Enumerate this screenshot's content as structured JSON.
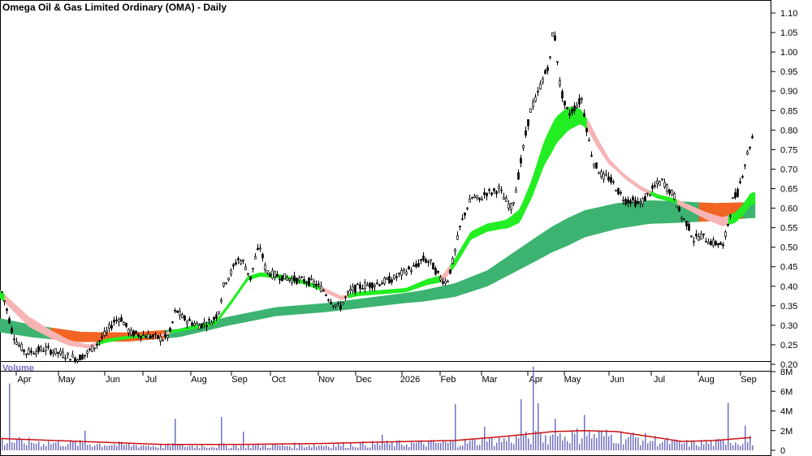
{
  "title": "Omega Oil & Gas Limited Ordinary (OMA) - Daily",
  "volume_label": "Volume",
  "colors": {
    "candle": "#000000",
    "ema_short_up": "#22ee22",
    "ema_short_down": "#f7b4b4",
    "ema_long_up": "#3cb371",
    "ema_long_down": "#f26522",
    "volume_bar": "#7070c0",
    "volume_avg": "#cc1111",
    "volume_label": "#7070c0"
  },
  "chart_data": [
    {
      "type": "candlestick",
      "title": "Omega Oil & Gas Limited Ordinary (OMA) - Daily",
      "y_ticks": [
        "1.10",
        "1.05",
        "1.00",
        "0.95",
        "0.90",
        "0.85",
        "0.80",
        "0.75",
        "0.70",
        "0.65",
        "0.60",
        "0.55",
        "0.50",
        "0.45",
        "0.40",
        "0.35",
        "0.30",
        "0.25",
        "0.20"
      ],
      "ylim": [
        0.185,
        1.11
      ],
      "x_labels": [
        "Apr",
        "May",
        "Jun",
        "Jul",
        "Aug",
        "Sep",
        "Oct",
        "Nov",
        "Dec",
        "2026",
        "Feb",
        "Mar",
        "Apr",
        "May",
        "Jun",
        "Jul",
        "Aug",
        "Sep"
      ],
      "price_path": [
        [
          0,
          0.4
        ],
        [
          8,
          0.34
        ],
        [
          15,
          0.28
        ],
        [
          22,
          0.25
        ],
        [
          32,
          0.23
        ],
        [
          45,
          0.235
        ],
        [
          55,
          0.24
        ],
        [
          70,
          0.23
        ],
        [
          85,
          0.22
        ],
        [
          95,
          0.215
        ],
        [
          105,
          0.225
        ],
        [
          118,
          0.25
        ],
        [
          130,
          0.28
        ],
        [
          140,
          0.31
        ],
        [
          148,
          0.32
        ],
        [
          160,
          0.28
        ],
        [
          175,
          0.275
        ],
        [
          190,
          0.27
        ],
        [
          200,
          0.265
        ],
        [
          208,
          0.275
        ],
        [
          216,
          0.34
        ],
        [
          224,
          0.32
        ],
        [
          232,
          0.31
        ],
        [
          245,
          0.3
        ],
        [
          260,
          0.31
        ],
        [
          268,
          0.33
        ],
        [
          276,
          0.41
        ],
        [
          283,
          0.43
        ],
        [
          292,
          0.47
        ],
        [
          300,
          0.46
        ],
        [
          308,
          0.42
        ],
        [
          315,
          0.48
        ],
        [
          320,
          0.5
        ],
        [
          327,
          0.44
        ],
        [
          335,
          0.43
        ],
        [
          345,
          0.425
        ],
        [
          355,
          0.42
        ],
        [
          370,
          0.415
        ],
        [
          385,
          0.41
        ],
        [
          398,
          0.39
        ],
        [
          408,
          0.36
        ],
        [
          418,
          0.345
        ],
        [
          425,
          0.37
        ],
        [
          432,
          0.39
        ],
        [
          445,
          0.4
        ],
        [
          458,
          0.405
        ],
        [
          470,
          0.41
        ],
        [
          485,
          0.42
        ],
        [
          500,
          0.44
        ],
        [
          512,
          0.45
        ],
        [
          520,
          0.47
        ],
        [
          530,
          0.46
        ],
        [
          542,
          0.42
        ],
        [
          550,
          0.41
        ],
        [
          558,
          0.47
        ],
        [
          566,
          0.55
        ],
        [
          574,
          0.6
        ],
        [
          582,
          0.63
        ],
        [
          590,
          0.62
        ],
        [
          598,
          0.64
        ],
        [
          606,
          0.64
        ],
        [
          614,
          0.65
        ],
        [
          622,
          0.62
        ],
        [
          630,
          0.6
        ],
        [
          636,
          0.66
        ],
        [
          642,
          0.73
        ],
        [
          648,
          0.8
        ],
        [
          654,
          0.86
        ],
        [
          660,
          0.88
        ],
        [
          666,
          0.92
        ],
        [
          672,
          0.95
        ],
        [
          677,
          0.98
        ],
        [
          681,
          1.07
        ],
        [
          685,
          1.0
        ],
        [
          689,
          0.92
        ],
        [
          694,
          0.87
        ],
        [
          700,
          0.84
        ],
        [
          708,
          0.86
        ],
        [
          716,
          0.88
        ],
        [
          724,
          0.78
        ],
        [
          730,
          0.72
        ],
        [
          736,
          0.7
        ],
        [
          742,
          0.68
        ],
        [
          748,
          0.68
        ],
        [
          756,
          0.66
        ],
        [
          762,
          0.64
        ],
        [
          770,
          0.62
        ],
        [
          778,
          0.62
        ],
        [
          786,
          0.61
        ],
        [
          792,
          0.62
        ],
        [
          800,
          0.64
        ],
        [
          808,
          0.66
        ],
        [
          816,
          0.67
        ],
        [
          822,
          0.65
        ],
        [
          830,
          0.63
        ],
        [
          838,
          0.58
        ],
        [
          846,
          0.56
        ],
        [
          854,
          0.52
        ],
        [
          862,
          0.53
        ],
        [
          870,
          0.52
        ],
        [
          878,
          0.51
        ],
        [
          886,
          0.51
        ],
        [
          890,
          0.5
        ],
        [
          896,
          0.56
        ],
        [
          902,
          0.62
        ],
        [
          908,
          0.64
        ],
        [
          914,
          0.69
        ],
        [
          920,
          0.74
        ],
        [
          926,
          0.78
        ]
      ],
      "ema_short_path": [
        [
          0,
          0.38
        ],
        [
          15,
          0.35
        ],
        [
          35,
          0.31
        ],
        [
          60,
          0.28
        ],
        [
          85,
          0.255
        ],
        [
          110,
          0.245
        ],
        [
          130,
          0.26
        ],
        [
          160,
          0.27
        ],
        [
          195,
          0.272
        ],
        [
          215,
          0.285
        ],
        [
          240,
          0.295
        ],
        [
          265,
          0.305
        ],
        [
          285,
          0.36
        ],
        [
          305,
          0.42
        ],
        [
          320,
          0.43
        ],
        [
          345,
          0.425
        ],
        [
          375,
          0.41
        ],
        [
          400,
          0.39
        ],
        [
          420,
          0.37
        ],
        [
          440,
          0.38
        ],
        [
          470,
          0.385
        ],
        [
          500,
          0.39
        ],
        [
          525,
          0.41
        ],
        [
          545,
          0.42
        ],
        [
          560,
          0.46
        ],
        [
          580,
          0.53
        ],
        [
          600,
          0.55
        ],
        [
          625,
          0.56
        ],
        [
          640,
          0.58
        ],
        [
          655,
          0.65
        ],
        [
          670,
          0.74
        ],
        [
          685,
          0.8
        ],
        [
          700,
          0.83
        ],
        [
          715,
          0.835
        ],
        [
          725,
          0.81
        ],
        [
          735,
          0.77
        ],
        [
          750,
          0.72
        ],
        [
          770,
          0.68
        ],
        [
          790,
          0.65
        ],
        [
          810,
          0.63
        ],
        [
          830,
          0.62
        ],
        [
          850,
          0.6
        ],
        [
          870,
          0.58
        ],
        [
          890,
          0.565
        ],
        [
          905,
          0.575
        ],
        [
          915,
          0.595
        ],
        [
          925,
          0.625
        ]
      ],
      "ema_short_width_path": [
        [
          0,
          0.02
        ],
        [
          40,
          0.025
        ],
        [
          100,
          0.01
        ],
        [
          200,
          0.005
        ],
        [
          280,
          0.01
        ],
        [
          320,
          0.01
        ],
        [
          400,
          0.01
        ],
        [
          500,
          0.01
        ],
        [
          560,
          0.02
        ],
        [
          620,
          0.02
        ],
        [
          650,
          0.04
        ],
        [
          680,
          0.07
        ],
        [
          700,
          0.06
        ],
        [
          720,
          0.03
        ],
        [
          760,
          0.01
        ],
        [
          830,
          0.01
        ],
        [
          880,
          0.02
        ],
        [
          925,
          0.03
        ]
      ],
      "ema_long_path": [
        [
          0,
          0.3
        ],
        [
          40,
          0.285
        ],
        [
          100,
          0.27
        ],
        [
          160,
          0.27
        ],
        [
          220,
          0.28
        ],
        [
          280,
          0.31
        ],
        [
          340,
          0.335
        ],
        [
          400,
          0.345
        ],
        [
          460,
          0.36
        ],
        [
          520,
          0.375
        ],
        [
          560,
          0.39
        ],
        [
          600,
          0.42
        ],
        [
          640,
          0.47
        ],
        [
          680,
          0.52
        ],
        [
          720,
          0.56
        ],
        [
          760,
          0.58
        ],
        [
          800,
          0.59
        ],
        [
          840,
          0.59
        ],
        [
          880,
          0.59
        ],
        [
          925,
          0.595
        ]
      ],
      "ema_long_width_path": [
        [
          0,
          0.035
        ],
        [
          100,
          0.025
        ],
        [
          200,
          0.02
        ],
        [
          300,
          0.022
        ],
        [
          400,
          0.022
        ],
        [
          500,
          0.025
        ],
        [
          600,
          0.04
        ],
        [
          660,
          0.06
        ],
        [
          700,
          0.07
        ],
        [
          760,
          0.065
        ],
        [
          830,
          0.055
        ],
        [
          880,
          0.045
        ],
        [
          925,
          0.04
        ]
      ],
      "volume": {
        "y_ticks": [
          "8M",
          "6M",
          "4M",
          "2M",
          "0"
        ],
        "ylim": [
          0,
          9
        ],
        "units": "M",
        "avg_path": [
          [
            0,
            1.2
          ],
          [
            100,
            0.9
          ],
          [
            200,
            0.6
          ],
          [
            300,
            0.6
          ],
          [
            400,
            0.7
          ],
          [
            500,
            0.9
          ],
          [
            560,
            1.0
          ],
          [
            620,
            1.4
          ],
          [
            680,
            1.9
          ],
          [
            720,
            2.0
          ],
          [
            760,
            1.9
          ],
          [
            800,
            1.4
          ],
          [
            840,
            0.9
          ],
          [
            880,
            1.0
          ],
          [
            925,
            1.3
          ]
        ],
        "spikes": [
          [
            12,
            6.8
          ],
          [
            105,
            2.0
          ],
          [
            215,
            3.2
          ],
          [
            272,
            3.4
          ],
          [
            300,
            1.9
          ],
          [
            470,
            1.6
          ],
          [
            560,
            4.7
          ],
          [
            595,
            2.4
          ],
          [
            640,
            5.2
          ],
          [
            655,
            8.5
          ],
          [
            662,
            4.8
          ],
          [
            682,
            3.2
          ],
          [
            720,
            3.6
          ],
          [
            895,
            4.8
          ],
          [
            918,
            2.5
          ]
        ]
      }
    }
  ]
}
